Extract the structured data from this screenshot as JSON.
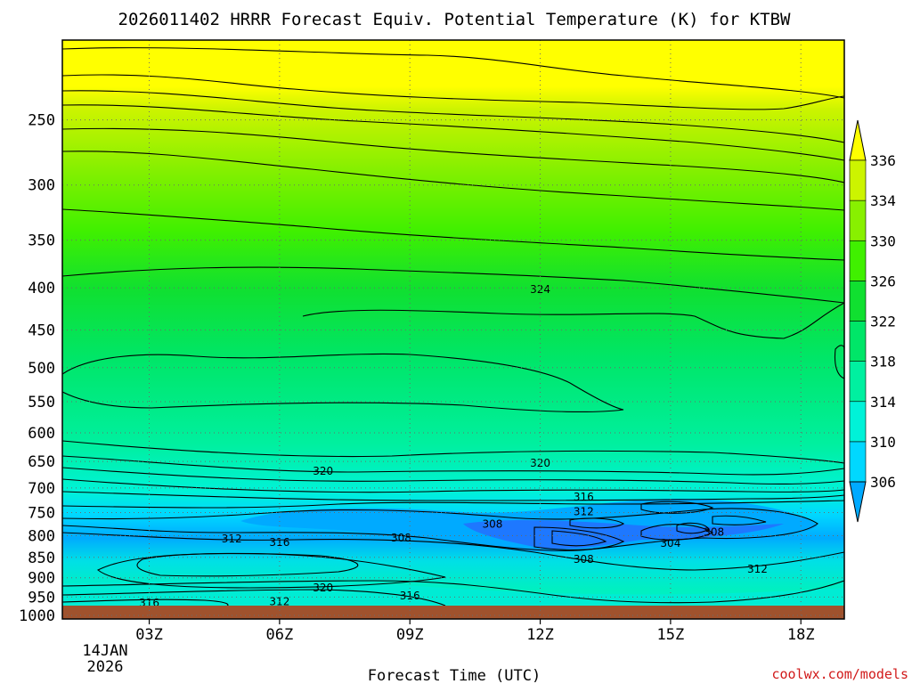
{
  "chart_data": {
    "type": "heatmap",
    "title": "2026011402 HRRR Forecast Equiv. Potential Temperature (K) for KTBW",
    "xlabel": "Forecast Time (UTC)",
    "ylabel": "",
    "x_ticks": [
      "03Z",
      "06Z",
      "09Z",
      "12Z",
      "15Z",
      "18Z"
    ],
    "x_date_label": [
      "14JAN",
      "2026"
    ],
    "y_ticks": [
      250,
      300,
      350,
      400,
      450,
      500,
      550,
      600,
      650,
      700,
      750,
      800,
      850,
      900,
      950,
      1000
    ],
    "y_scale": "log-pressure",
    "ylim": [
      1000,
      200
    ],
    "grid": true,
    "colorbar": {
      "labels": [
        306,
        310,
        314,
        318,
        322,
        326,
        330,
        334,
        336
      ],
      "colors": [
        "#00aaff",
        "#00d8ff",
        "#00f2d8",
        "#00f0a0",
        "#00e668",
        "#10e030",
        "#40f000",
        "#88f000",
        "#ccf400",
        "#ffff00"
      ],
      "extend": "both"
    },
    "contour_labels": [
      {
        "text": "324",
        "hour": 12.0,
        "hPa": 402
      },
      {
        "text": "320",
        "hour": 7.0,
        "hPa": 668
      },
      {
        "text": "320",
        "hour": 12.0,
        "hPa": 653
      },
      {
        "text": "316",
        "hour": 13.0,
        "hPa": 718
      },
      {
        "text": "312",
        "hour": 13.0,
        "hPa": 748
      },
      {
        "text": "308",
        "hour": 10.9,
        "hPa": 775
      },
      {
        "text": "308",
        "hour": 8.8,
        "hPa": 805
      },
      {
        "text": "312",
        "hour": 4.9,
        "hPa": 807
      },
      {
        "text": "316",
        "hour": 6.0,
        "hPa": 815
      },
      {
        "text": "304",
        "hour": 15.0,
        "hPa": 817
      },
      {
        "text": "308",
        "hour": 16.0,
        "hPa": 792
      },
      {
        "text": "308",
        "hour": 13.0,
        "hPa": 855
      },
      {
        "text": "312",
        "hour": 17.0,
        "hPa": 878
      },
      {
        "text": "320",
        "hour": 7.0,
        "hPa": 926
      },
      {
        "text": "316",
        "hour": 9.0,
        "hPa": 947
      },
      {
        "text": "312",
        "hour": 6.0,
        "hPa": 962
      },
      {
        "text": "316",
        "hour": 3.0,
        "hPa": 966
      }
    ]
  },
  "footer": {
    "source": "coolwx.com/models"
  }
}
